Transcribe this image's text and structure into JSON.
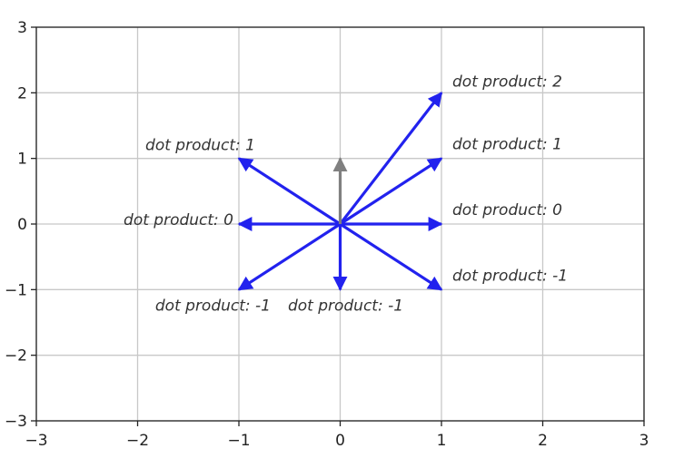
{
  "chart_data": {
    "type": "quiver",
    "title": "",
    "xlabel": "",
    "ylabel": "",
    "xlim": [
      -3,
      3
    ],
    "ylim": [
      -3,
      3
    ],
    "grid": true,
    "x_ticks": [
      "−3",
      "−2",
      "−1",
      "0",
      "1",
      "2",
      "3"
    ],
    "y_ticks": [
      "−3",
      "−2",
      "−1",
      "0",
      "1",
      "2",
      "3"
    ],
    "reference_vector": {
      "x": 0,
      "y": 1,
      "color": "#808080"
    },
    "vector_color": "#2222ee",
    "vectors": [
      {
        "x": 1,
        "y": 2,
        "label": "dot product: 2"
      },
      {
        "x": 1,
        "y": 1,
        "label": "dot product: 1"
      },
      {
        "x": 1,
        "y": 0,
        "label": "dot product: 0"
      },
      {
        "x": 1,
        "y": -1,
        "label": "dot product: -1"
      },
      {
        "x": 0,
        "y": -1,
        "label": "dot product: -1"
      },
      {
        "x": -1,
        "y": -1,
        "label": "dot product: -1"
      },
      {
        "x": -1,
        "y": 0,
        "label": "dot product: 0"
      },
      {
        "x": -1,
        "y": 1,
        "label": "dot product: 1"
      }
    ]
  }
}
